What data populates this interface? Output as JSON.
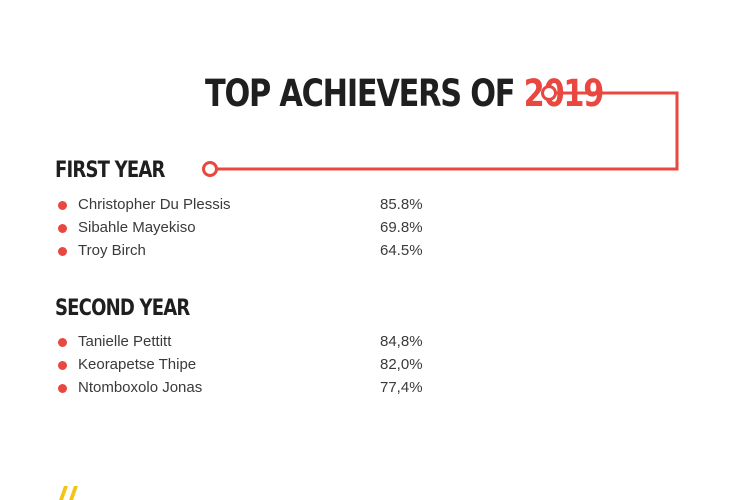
{
  "title": {
    "prefix": "TOP ACHIEVERS OF ",
    "year": "2019"
  },
  "accent_color": "#e8483f",
  "heading_color": "#1f1f1f",
  "sections": [
    {
      "heading": "FIRST YEAR",
      "rows": [
        {
          "name": "Christopher Du Plessis",
          "score": "85.8%"
        },
        {
          "name": "Sibahle Mayekiso",
          "score": "69.8%"
        },
        {
          "name": "Troy Birch",
          "score": "64.5%"
        }
      ]
    },
    {
      "heading": "SECOND YEAR",
      "rows": [
        {
          "name": "Tanielle Pettitt",
          "score": "84,8%"
        },
        {
          "name": "Keorapetse Thipe",
          "score": "82,0%"
        },
        {
          "name": "Ntomboxolo Jonas",
          "score": "77,4%"
        }
      ]
    }
  ],
  "decorations": {
    "connector": "circle-line-connector",
    "bottom_mark": "yellow-quote-mark-icon",
    "bottom_mark_color": "#f2c318"
  }
}
